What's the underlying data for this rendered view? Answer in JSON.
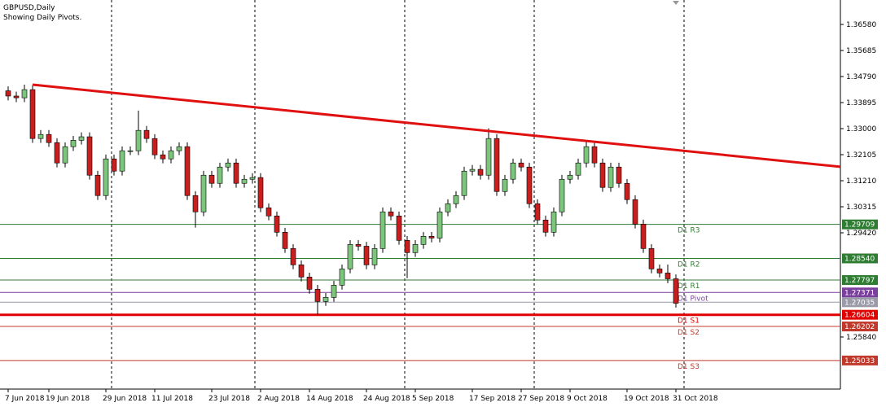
{
  "chart_data": {
    "type": "candlestick",
    "title": "GBPUSD,Daily",
    "subtitle": "Showing Daily Pivots.",
    "categories": [
      "7 Jun 2018",
      null,
      null,
      null,
      null,
      "19 Jun 2018",
      null,
      null,
      null,
      null,
      null,
      null,
      "29 Jun 2018",
      null,
      null,
      null,
      null,
      null,
      "11 Jul 2018",
      null,
      null,
      null,
      null,
      null,
      null,
      "23 Jul 2018",
      null,
      null,
      null,
      null,
      null,
      "2 Aug 2018",
      null,
      null,
      null,
      null,
      null,
      "14 Aug 2018",
      null,
      null,
      null,
      null,
      null,
      null,
      "24 Aug 2018",
      null,
      null,
      null,
      null,
      null,
      "5 Sep 2018",
      null,
      null,
      null,
      null,
      null,
      null,
      "17 Sep 2018",
      null,
      null,
      null,
      null,
      null,
      "27 Sep 2018",
      null,
      null,
      null,
      null,
      null,
      "9 Oct 2018",
      null,
      null,
      null,
      null,
      null,
      null,
      "19 Oct 2018",
      null,
      null,
      null,
      null,
      null,
      "31 Oct 2018"
    ],
    "open": [
      1.343,
      1.3412,
      1.3406,
      1.3434,
      1.3266,
      1.328,
      1.3252,
      1.3182,
      1.3238,
      1.326,
      1.3272,
      1.314,
      1.307,
      1.3196,
      1.3154,
      1.3224,
      1.3224,
      1.3294,
      1.3266,
      1.321,
      1.3196,
      1.3224,
      1.3238,
      1.307,
      1.3014,
      1.314,
      1.3112,
      1.3168,
      1.3182,
      1.3112,
      1.3126,
      1.3132,
      1.3028,
      1.3,
      1.2944,
      1.2888,
      1.2832,
      1.279,
      1.2748,
      1.2706,
      1.272,
      1.2762,
      1.2818,
      1.2902,
      1.2896,
      1.2832,
      1.2888,
      1.3014,
      1.3,
      1.2916,
      1.2874,
      1.2902,
      1.293,
      1.2924,
      1.3014,
      1.3042,
      1.307,
      1.3154,
      1.316,
      1.314,
      1.3266,
      1.3084,
      1.3126,
      1.3182,
      1.3168,
      1.3042,
      1.2986,
      1.2944,
      1.3014,
      1.3126,
      1.314,
      1.3182,
      1.3238,
      1.3182,
      1.3098,
      1.3168,
      1.3112,
      1.3056,
      1.2972,
      1.2888,
      1.2818,
      1.2804,
      1.2784
    ],
    "high": [
      1.3445,
      1.3427,
      1.3451,
      1.3449,
      1.3295,
      1.3295,
      1.3267,
      1.3253,
      1.3275,
      1.3287,
      1.3287,
      1.3155,
      1.3211,
      1.3211,
      1.3239,
      1.3239,
      1.3362,
      1.3309,
      1.3281,
      1.3225,
      1.3239,
      1.3253,
      1.3253,
      1.3085,
      1.3155,
      1.3155,
      1.3183,
      1.3197,
      1.3197,
      1.3141,
      1.3147,
      1.3147,
      1.3043,
      1.3015,
      1.2959,
      1.2903,
      1.2847,
      1.2805,
      1.2763,
      1.2735,
      1.2777,
      1.2833,
      1.2917,
      1.2917,
      1.2911,
      1.2903,
      1.3029,
      1.3029,
      1.3015,
      1.2931,
      1.2917,
      1.2945,
      1.2945,
      1.3029,
      1.3057,
      1.3085,
      1.3169,
      1.3175,
      1.3175,
      1.3301,
      1.3281,
      1.3141,
      1.3197,
      1.3197,
      1.3183,
      1.3057,
      1.3001,
      1.3029,
      1.3141,
      1.3155,
      1.3197,
      1.3259,
      1.3253,
      1.3197,
      1.3183,
      1.3183,
      1.3127,
      1.3071,
      1.2987,
      1.2903,
      1.2833,
      1.2833,
      1.2799
    ],
    "low": [
      1.3397,
      1.3391,
      1.3391,
      1.3251,
      1.3251,
      1.3237,
      1.3167,
      1.3167,
      1.3223,
      1.3245,
      1.3125,
      1.3055,
      1.3055,
      1.3139,
      1.3139,
      1.3209,
      1.3209,
      1.3251,
      1.3195,
      1.3181,
      1.3181,
      1.3209,
      1.3055,
      1.296,
      1.2999,
      1.3097,
      1.3097,
      1.3153,
      1.3097,
      1.3097,
      1.3111,
      1.3013,
      1.2985,
      1.2929,
      1.2873,
      1.2817,
      1.2775,
      1.2733,
      1.2661,
      1.2691,
      1.2705,
      1.2747,
      1.2803,
      1.2881,
      1.2817,
      1.2817,
      1.2873,
      1.2985,
      1.2901,
      1.2786,
      1.2859,
      1.2887,
      1.2909,
      1.2909,
      1.2999,
      1.3027,
      1.3055,
      1.3139,
      1.3125,
      1.3125,
      1.3069,
      1.3069,
      1.3111,
      1.3153,
      1.3027,
      1.2971,
      1.2929,
      1.2929,
      1.2999,
      1.3111,
      1.3125,
      1.3167,
      1.3167,
      1.3083,
      1.3083,
      1.3097,
      1.3041,
      1.2957,
      1.2873,
      1.2803,
      1.2789,
      1.2769,
      1.2685
    ],
    "close": [
      1.3412,
      1.3406,
      1.3434,
      1.3266,
      1.328,
      1.3252,
      1.3182,
      1.3238,
      1.326,
      1.3272,
      1.314,
      1.307,
      1.3196,
      1.3154,
      1.3224,
      1.3224,
      1.3294,
      1.3266,
      1.321,
      1.3196,
      1.3224,
      1.3238,
      1.307,
      1.3014,
      1.314,
      1.3112,
      1.3168,
      1.3182,
      1.3112,
      1.3126,
      1.3132,
      1.3028,
      1.3,
      1.2944,
      1.2888,
      1.2832,
      1.279,
      1.2748,
      1.2706,
      1.272,
      1.2762,
      1.2818,
      1.2902,
      1.2896,
      1.2832,
      1.2888,
      1.3014,
      1.3,
      1.2916,
      1.2874,
      1.2902,
      1.293,
      1.2924,
      1.3014,
      1.3042,
      1.307,
      1.3154,
      1.316,
      1.314,
      1.3266,
      1.3084,
      1.3126,
      1.3182,
      1.3168,
      1.3042,
      1.2986,
      1.2944,
      1.3014,
      1.3126,
      1.314,
      1.3182,
      1.3238,
      1.3182,
      1.3098,
      1.3168,
      1.3112,
      1.3056,
      1.2972,
      1.2888,
      1.2818,
      1.2804,
      1.2784,
      1.27
    ],
    "up_color": "#7bc67b",
    "down_color": "#c81e1e",
    "ylim": [
      1.2405,
      1.3742
    ],
    "yticks": [
      {
        "value": 1.3658,
        "label": "1.36580"
      },
      {
        "value": 1.35685,
        "label": "1.35685"
      },
      {
        "value": 1.3479,
        "label": "1.34790"
      },
      {
        "value": 1.33895,
        "label": "1.33895"
      },
      {
        "value": 1.33,
        "label": "1.33000"
      },
      {
        "value": 1.32105,
        "label": "1.32105"
      },
      {
        "value": 1.3121,
        "label": "1.31210"
      },
      {
        "value": 1.30315,
        "label": "1.30315"
      },
      {
        "value": 1.2942,
        "label": "1.29420"
      },
      {
        "value": 1.2584,
        "label": "1.25840"
      }
    ],
    "levels": [
      {
        "name": "D1 R3",
        "value": 1.29709,
        "value_label": "1.29709",
        "color": "#2e7d32"
      },
      {
        "name": "D1 R2",
        "value": 1.2854,
        "value_label": "1.28540",
        "color": "#2e7d32"
      },
      {
        "name": "D1 R1",
        "value": 1.27797,
        "value_label": "1.27797",
        "color": "#2e7d32"
      },
      {
        "name": "D1 Pivot",
        "value": 1.27371,
        "value_label": "1.27371",
        "color": "#7b3f9e"
      },
      {
        "name": "D1 S1",
        "value": 1.26604,
        "value_label": "1.26604",
        "color": "#e00000"
      },
      {
        "name": "D1 S2",
        "value": 1.26202,
        "value_label": "1.26202",
        "color": "#c0392b"
      },
      {
        "name": "D1 S3",
        "value": 1.25033,
        "value_label": "1.25033",
        "color": "#c0392b"
      }
    ],
    "price_line": {
      "value": 1.27035,
      "value_label": "1.27035",
      "color": "#9a9aa8"
    },
    "trendline": {
      "values": [
        1.3451,
        1.3169
      ],
      "color": "#e01010"
    }
  }
}
